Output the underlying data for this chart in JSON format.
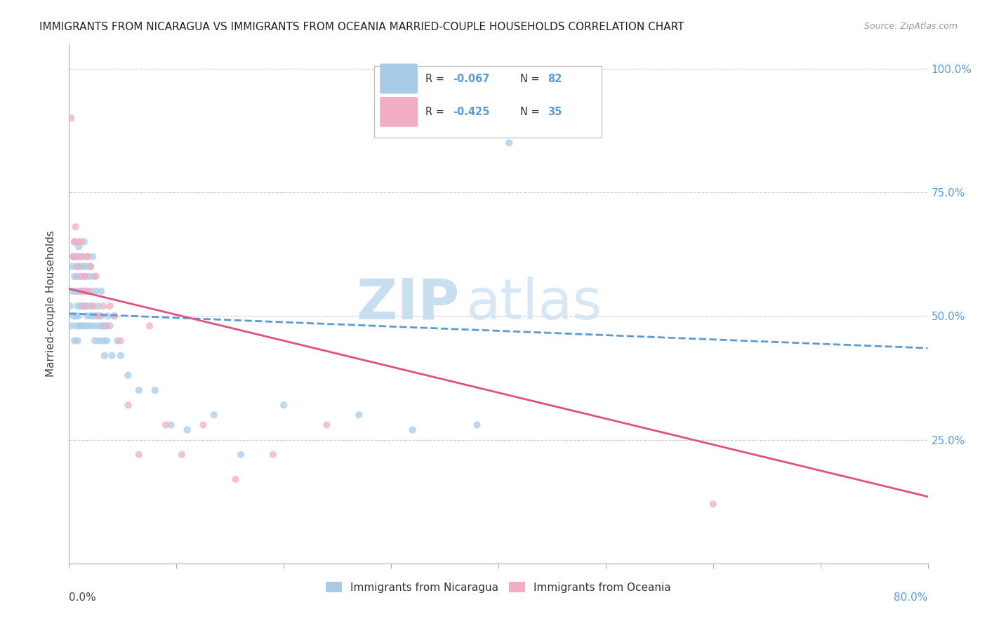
{
  "title": "IMMIGRANTS FROM NICARAGUA VS IMMIGRANTS FROM OCEANIA MARRIED-COUPLE HOUSEHOLDS CORRELATION CHART",
  "source": "Source: ZipAtlas.com",
  "ylabel": "Married-couple Households",
  "ylim": [
    0.0,
    1.05
  ],
  "xlim": [
    0.0,
    0.8
  ],
  "r_nicaragua": -0.067,
  "n_nicaragua": 82,
  "r_oceania": -0.425,
  "n_oceania": 35,
  "color_nicaragua": "#a8cce8",
  "color_oceania": "#f4aec4",
  "line_color_nicaragua": "#5b9bd5",
  "line_color_oceania": "#e05080",
  "nic_line_x0": 0.0,
  "nic_line_y0": 0.505,
  "nic_line_x1": 0.8,
  "nic_line_y1": 0.435,
  "oce_line_x0": 0.0,
  "oce_line_y0": 0.555,
  "oce_line_x1": 0.8,
  "oce_line_y1": 0.135,
  "nicaragua_x": [
    0.001,
    0.002,
    0.003,
    0.003,
    0.004,
    0.004,
    0.005,
    0.005,
    0.005,
    0.006,
    0.006,
    0.006,
    0.007,
    0.007,
    0.007,
    0.008,
    0.008,
    0.008,
    0.009,
    0.009,
    0.009,
    0.01,
    0.01,
    0.01,
    0.011,
    0.011,
    0.012,
    0.012,
    0.013,
    0.013,
    0.014,
    0.014,
    0.015,
    0.015,
    0.016,
    0.016,
    0.017,
    0.017,
    0.018,
    0.018,
    0.019,
    0.019,
    0.02,
    0.02,
    0.021,
    0.021,
    0.022,
    0.022,
    0.023,
    0.023,
    0.024,
    0.025,
    0.025,
    0.026,
    0.027,
    0.028,
    0.029,
    0.03,
    0.03,
    0.031,
    0.032,
    0.033,
    0.034,
    0.035,
    0.036,
    0.038,
    0.04,
    0.042,
    0.045,
    0.048,
    0.055,
    0.065,
    0.08,
    0.095,
    0.11,
    0.135,
    0.16,
    0.2,
    0.27,
    0.32,
    0.38,
    0.41
  ],
  "nicaragua_y": [
    0.52,
    0.48,
    0.55,
    0.6,
    0.62,
    0.5,
    0.58,
    0.65,
    0.45,
    0.62,
    0.5,
    0.55,
    0.6,
    0.48,
    0.58,
    0.62,
    0.52,
    0.45,
    0.64,
    0.55,
    0.5,
    0.6,
    0.48,
    0.55,
    0.62,
    0.52,
    0.58,
    0.48,
    0.6,
    0.52,
    0.55,
    0.65,
    0.48,
    0.58,
    0.6,
    0.52,
    0.5,
    0.62,
    0.55,
    0.48,
    0.52,
    0.58,
    0.6,
    0.5,
    0.55,
    0.48,
    0.52,
    0.62,
    0.5,
    0.58,
    0.45,
    0.55,
    0.48,
    0.5,
    0.52,
    0.45,
    0.48,
    0.5,
    0.55,
    0.48,
    0.45,
    0.42,
    0.48,
    0.45,
    0.5,
    0.48,
    0.42,
    0.5,
    0.45,
    0.42,
    0.38,
    0.35,
    0.35,
    0.28,
    0.27,
    0.3,
    0.22,
    0.32,
    0.3,
    0.27,
    0.28,
    0.85
  ],
  "oceania_x": [
    0.002,
    0.004,
    0.005,
    0.006,
    0.007,
    0.008,
    0.009,
    0.01,
    0.011,
    0.012,
    0.013,
    0.014,
    0.015,
    0.016,
    0.017,
    0.018,
    0.02,
    0.022,
    0.025,
    0.028,
    0.032,
    0.035,
    0.038,
    0.042,
    0.048,
    0.055,
    0.065,
    0.075,
    0.09,
    0.105,
    0.125,
    0.155,
    0.19,
    0.24,
    0.6
  ],
  "oceania_y": [
    0.9,
    0.62,
    0.65,
    0.68,
    0.62,
    0.6,
    0.65,
    0.58,
    0.65,
    0.55,
    0.62,
    0.52,
    0.58,
    0.55,
    0.62,
    0.55,
    0.6,
    0.52,
    0.58,
    0.5,
    0.52,
    0.48,
    0.52,
    0.5,
    0.45,
    0.32,
    0.22,
    0.48,
    0.28,
    0.22,
    0.28,
    0.17,
    0.22,
    0.28,
    0.12
  ]
}
